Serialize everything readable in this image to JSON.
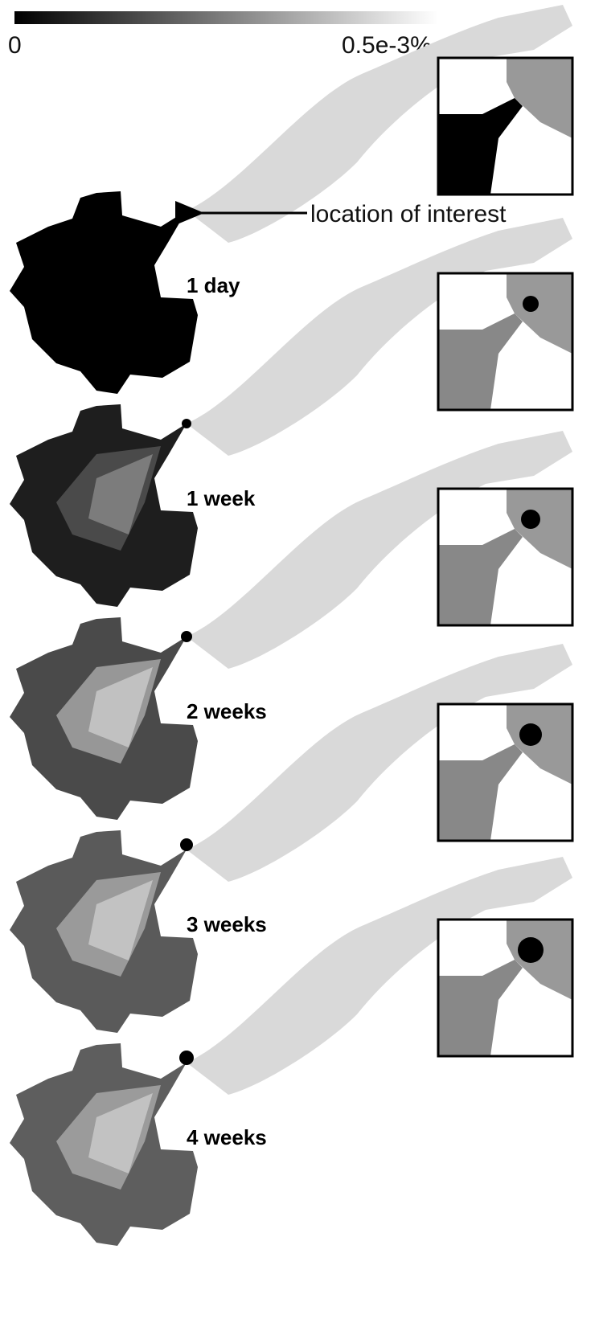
{
  "colorbar": {
    "min_label": "0",
    "max_label": "0.5e-3%"
  },
  "annotation": "location of interest",
  "panels": [
    {
      "label": "1 day"
    },
    {
      "label": "1 week"
    },
    {
      "label": "2 weeks"
    },
    {
      "label": "3 weeks"
    },
    {
      "label": "4 weeks"
    }
  ]
}
